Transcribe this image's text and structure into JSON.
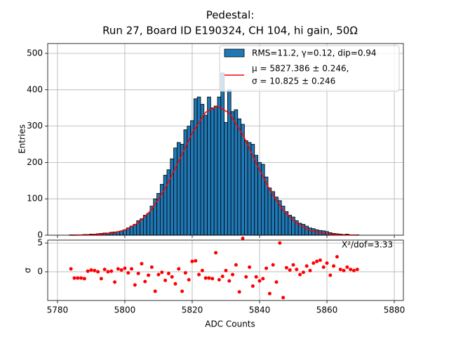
{
  "chart_data": [
    {
      "type": "histogram",
      "title": [
        "Pedestal:",
        "Run 27, Board ID E190324, CH 104, hi gain, 50Ω"
      ],
      "ylabel": "Entries",
      "name": "RMS=11.2, γ=0.12, dip=0.94",
      "color": "#1f77b4",
      "edgecolor": "#000000",
      "bins": [
        5783.5,
        5784.5,
        5785.5,
        5786.5,
        5787.5,
        5788.5,
        5789.5,
        5790.5,
        5791.5,
        5792.5,
        5793.5,
        5794.5,
        5795.5,
        5796.5,
        5797.5,
        5798.5,
        5799.5,
        5800.5,
        5801.5,
        5802.5,
        5803.5,
        5804.5,
        5805.5,
        5806.5,
        5807.5,
        5808.5,
        5809.5,
        5810.5,
        5811.5,
        5812.5,
        5813.5,
        5814.5,
        5815.5,
        5816.5,
        5817.5,
        5818.5,
        5819.5,
        5820.5,
        5821.5,
        5822.5,
        5823.5,
        5824.5,
        5825.5,
        5826.5,
        5827.5,
        5828.5,
        5829.5,
        5830.5,
        5831.5,
        5832.5,
        5833.5,
        5834.5,
        5835.5,
        5836.5,
        5837.5,
        5838.5,
        5839.5,
        5840.5,
        5841.5,
        5842.5,
        5843.5,
        5844.5,
        5845.5,
        5846.5,
        5847.5,
        5848.5,
        5849.5,
        5850.5,
        5851.5,
        5852.5,
        5853.5,
        5854.5,
        5855.5,
        5856.5,
        5857.5,
        5858.5,
        5859.5,
        5860.5,
        5861.5,
        5862.5,
        5863.5,
        5864.5,
        5865.5,
        5866.5,
        5867.5,
        5868.5,
        5869.5
      ],
      "values": [
        1,
        1,
        1,
        1,
        2,
        2,
        3,
        3,
        4,
        5,
        6,
        6,
        8,
        9,
        10,
        12,
        15,
        20,
        25,
        30,
        40,
        45,
        55,
        60,
        80,
        100,
        115,
        140,
        165,
        180,
        210,
        240,
        255,
        250,
        290,
        300,
        315,
        375,
        380,
        360,
        330,
        380,
        350,
        355,
        380,
        446,
        310,
        400,
        340,
        345,
        320,
        305,
        260,
        255,
        250,
        220,
        200,
        195,
        160,
        130,
        120,
        105,
        95,
        80,
        65,
        55,
        50,
        40,
        33,
        30,
        25,
        20,
        18,
        15,
        13,
        12,
        10,
        7,
        5,
        4,
        3,
        2,
        3,
        1,
        1,
        1
      ],
      "fit": {
        "name": [
          "μ = 5827.386 ± 0.246,",
          "σ = 10.825 ± 0.246"
        ],
        "color": "#ff0000",
        "x": [
          5784,
          5790,
          5796,
          5800,
          5804,
          5808,
          5812,
          5816,
          5820,
          5824,
          5827.4,
          5831,
          5835,
          5839,
          5843,
          5847,
          5851,
          5855,
          5859,
          5864,
          5869
        ],
        "values": [
          0.1,
          0.9,
          5.2,
          14.2,
          33.9,
          71,
          128.5,
          203,
          281,
          338,
          355,
          336,
          277,
          199,
          125,
          68.4,
          32.6,
          13.5,
          4.9,
          1.1,
          0.2
        ]
      },
      "xlim": [
        5777.1,
        5882.7
      ],
      "xticks": [
        5780,
        5800,
        5820,
        5840,
        5860,
        5880
      ],
      "ylim": [
        0,
        527
      ],
      "yticks": [
        0,
        100,
        200,
        300,
        400,
        500
      ],
      "grid": true,
      "legend": "upper right"
    },
    {
      "type": "scatter",
      "xlabel": "ADC Counts",
      "ylabel": "σ",
      "color": "#ff0000",
      "annotation": "X²/dof=3.33",
      "x": [
        5784,
        5785,
        5786,
        5787,
        5788,
        5789,
        5790,
        5791,
        5792,
        5793,
        5794,
        5795,
        5796,
        5797,
        5798,
        5799,
        5800,
        5801,
        5802,
        5803,
        5804,
        5805,
        5806,
        5807,
        5808,
        5809,
        5810,
        5811,
        5812,
        5813,
        5814,
        5815,
        5816,
        5817,
        5818,
        5819,
        5820,
        5821,
        5822,
        5823,
        5824,
        5825,
        5826,
        5827,
        5828,
        5829,
        5830,
        5831,
        5832,
        5833,
        5834,
        5835,
        5836,
        5837,
        5838,
        5839,
        5840,
        5841,
        5842,
        5843,
        5844,
        5845,
        5846,
        5847,
        5848,
        5849,
        5850,
        5851,
        5852,
        5853,
        5854,
        5855,
        5856,
        5857,
        5858,
        5859,
        5860,
        5861,
        5862,
        5863,
        5864,
        5865,
        5866,
        5867,
        5868,
        5869
      ],
      "values": [
        0.5,
        -1.1,
        -1.1,
        -1.1,
        -1.2,
        0.1,
        0.3,
        0.2,
        0.0,
        -1.2,
        0.4,
        0.0,
        0.1,
        -1.8,
        0.5,
        0.3,
        0.6,
        -0.2,
        0.5,
        -2.3,
        -0.3,
        1.4,
        -1.7,
        -0.6,
        0.8,
        -3.4,
        -0.5,
        -0.1,
        -1.5,
        -0.3,
        -0.9,
        -2.1,
        0.5,
        -3.4,
        -0.2,
        -1.4,
        1.8,
        1.9,
        -0.5,
        0.2,
        -1.1,
        -1.1,
        -1.2,
        3.3,
        -1.4,
        -0.8,
        0.2,
        -1.6,
        -0.5,
        1.2,
        -3.5,
        5.8,
        -0.9,
        0.8,
        -2.5,
        -0.9,
        -1.6,
        -1.2,
        0.6,
        -3.8,
        1.2,
        -1.8,
        5.0,
        -4.5,
        0.7,
        0.3,
        1.2,
        0.4,
        -0.5,
        -0.1,
        1.0,
        0.2,
        1.5,
        1.8,
        2.0,
        0.8,
        1.5,
        -0.6,
        1.0,
        2.6,
        0.4,
        0.2,
        0.8,
        0.4,
        0.2,
        0.4
      ],
      "xlim": [
        5777.1,
        5882.7
      ],
      "xticks": [
        5780,
        5800,
        5820,
        5840,
        5860,
        5880
      ],
      "ylim": [
        -5,
        5.5
      ],
      "yticks": [
        0,
        5
      ],
      "grid": true
    }
  ]
}
